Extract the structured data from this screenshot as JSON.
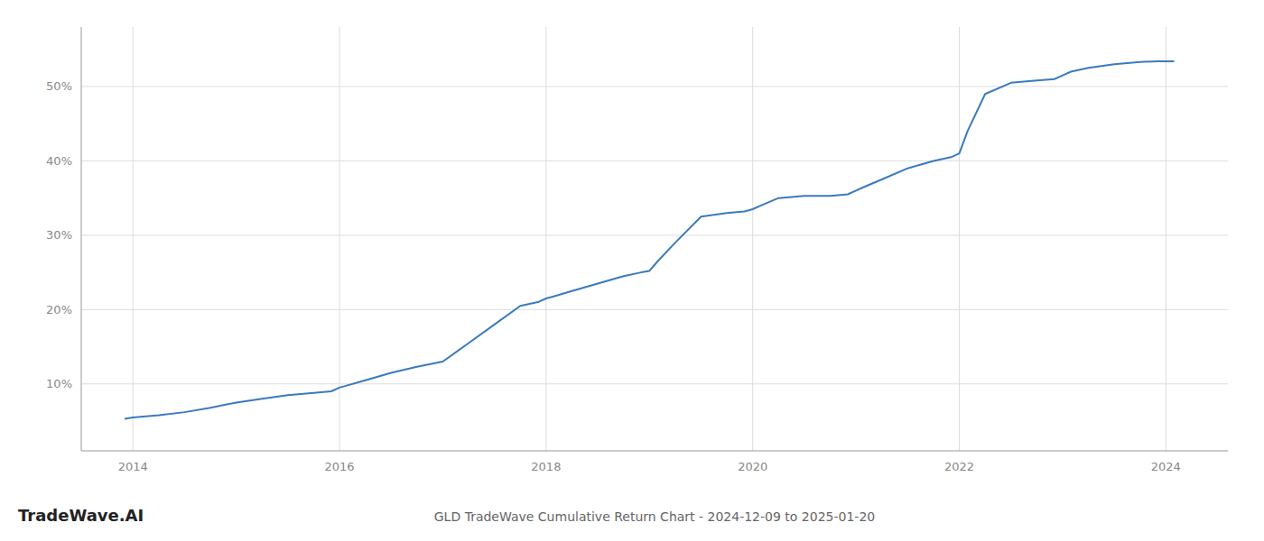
{
  "chart_data": {
    "type": "line",
    "title": "GLD TradeWave Cumulative Return Chart - 2024-12-09 to 2025-01-20",
    "annotations": [
      "TradeWave.AI"
    ],
    "color": "#3a7abf",
    "grid": true,
    "xlim": [
      2013.5,
      2024.6
    ],
    "ylim": [
      1,
      58
    ],
    "xticks": [
      2014,
      2016,
      2018,
      2020,
      2022,
      2024
    ],
    "yticks": [
      {
        "value": 10,
        "label": "10%"
      },
      {
        "value": 20,
        "label": "20%"
      },
      {
        "value": 30,
        "label": "30%"
      },
      {
        "value": 40,
        "label": "40%"
      },
      {
        "value": 50,
        "label": "50%"
      }
    ],
    "x": [
      2013.92,
      2014.0,
      2014.25,
      2014.5,
      2014.75,
      2015.0,
      2015.25,
      2015.5,
      2015.75,
      2015.92,
      2016.0,
      2016.25,
      2016.5,
      2016.75,
      2017.0,
      2017.25,
      2017.5,
      2017.75,
      2017.92,
      2018.0,
      2018.08,
      2018.25,
      2018.5,
      2018.75,
      2018.92,
      2019.0,
      2019.08,
      2019.25,
      2019.5,
      2019.75,
      2019.92,
      2020.0,
      2020.08,
      2020.25,
      2020.5,
      2020.75,
      2020.92,
      2021.0,
      2021.08,
      2021.25,
      2021.5,
      2021.75,
      2021.92,
      2022.0,
      2022.08,
      2022.25,
      2022.5,
      2022.75,
      2022.92,
      2023.0,
      2023.08,
      2023.25,
      2023.5,
      2023.75,
      2023.92,
      2024.0,
      2024.08
    ],
    "y": [
      5.3,
      5.5,
      5.8,
      6.2,
      6.8,
      7.5,
      8.0,
      8.5,
      8.8,
      9.0,
      9.5,
      10.5,
      11.5,
      12.3,
      13.0,
      15.5,
      18.0,
      20.5,
      21.0,
      21.5,
      21.8,
      22.5,
      23.5,
      24.5,
      25.0,
      25.2,
      26.5,
      29.0,
      32.5,
      33.0,
      33.2,
      33.5,
      34.0,
      35.0,
      35.3,
      35.3,
      35.5,
      36.0,
      36.5,
      37.5,
      39.0,
      40.0,
      40.5,
      41.0,
      44.0,
      49.0,
      50.5,
      50.8,
      51.0,
      51.5,
      52.0,
      52.5,
      53.0,
      53.3,
      53.4,
      53.4,
      53.4
    ]
  }
}
